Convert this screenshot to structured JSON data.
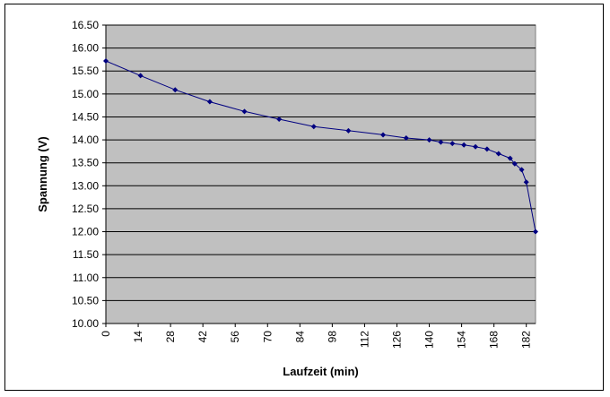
{
  "chart_data": {
    "type": "line",
    "title": "",
    "xlabel": "Laufzeit (min)",
    "ylabel": "Spannung (V)",
    "xlim": [
      0,
      186
    ],
    "ylim": [
      10.0,
      16.5
    ],
    "x_ticks": [
      "0",
      "14",
      "28",
      "42",
      "56",
      "70",
      "84",
      "98",
      "112",
      "126",
      "140",
      "154",
      "168",
      "182"
    ],
    "y_ticks": [
      "10.00",
      "10.50",
      "11.00",
      "11.50",
      "12.00",
      "12.50",
      "13.00",
      "13.50",
      "14.00",
      "14.50",
      "15.00",
      "15.50",
      "16.00",
      "16.50"
    ],
    "grid": "horizontal",
    "legend": "none",
    "colors": {
      "plot_background": "#c0c0c0",
      "series_line": "#000080",
      "gridline": "#000000"
    },
    "series": [
      {
        "x": [
          0,
          15,
          30,
          45,
          60,
          75,
          90,
          105,
          120,
          130,
          140,
          145,
          150,
          155,
          160,
          165,
          170,
          175,
          177,
          180,
          182,
          186
        ],
        "values": [
          15.72,
          15.4,
          15.09,
          14.83,
          14.62,
          14.45,
          14.29,
          14.2,
          14.11,
          14.04,
          14.0,
          13.95,
          13.92,
          13.89,
          13.85,
          13.8,
          13.7,
          13.6,
          13.48,
          13.35,
          13.08,
          12.0
        ]
      }
    ]
  }
}
